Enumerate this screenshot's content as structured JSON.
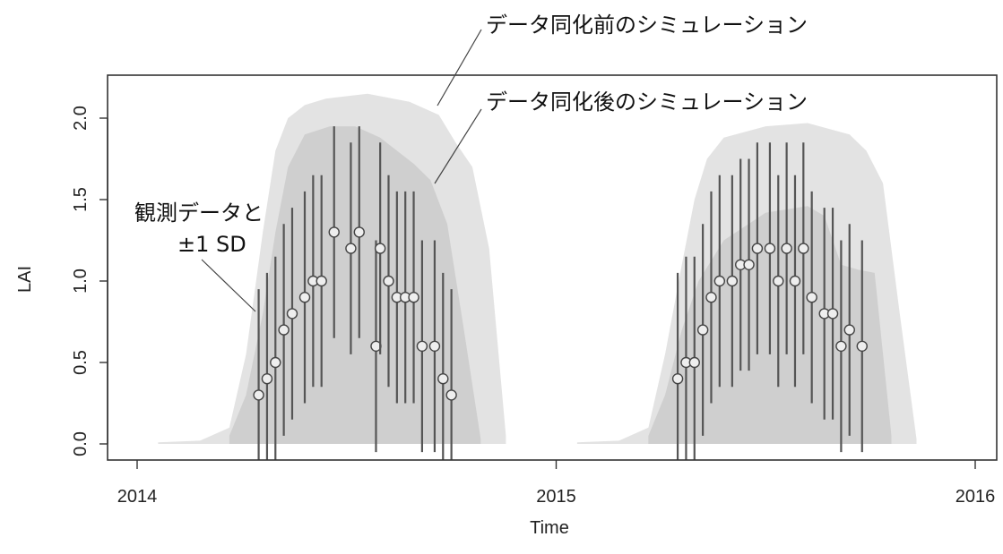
{
  "chart_data": {
    "type": "area",
    "xlabel": "Time",
    "ylabel": "LAI",
    "xlim": [
      2014.0,
      2016.0
    ],
    "ylim": [
      0.0,
      2.0
    ],
    "x_ticks": [
      {
        "value": 2014.0,
        "label": "2014"
      },
      {
        "value": 2015.0,
        "label": "2015"
      },
      {
        "value": 2016.0,
        "label": "2016"
      }
    ],
    "y_ticks": [
      {
        "value": 0.0,
        "label": "0.0"
      },
      {
        "value": 0.5,
        "label": "0.5"
      },
      {
        "value": 1.0,
        "label": "1.0"
      },
      {
        "value": 1.5,
        "label": "1.5"
      },
      {
        "value": 2.0,
        "label": "2.0"
      }
    ],
    "grid": false,
    "colors": {
      "band_before": "#e3e3e3",
      "band_after": "#cfcfcf",
      "observation": "#555555",
      "text": "#222222"
    },
    "series": [
      {
        "name": "データ同化前のシミュレーション",
        "kind": "band",
        "x": [
          2014.05,
          2014.15,
          2014.22,
          2014.26,
          2014.3,
          2014.33,
          2014.36,
          2014.4,
          2014.45,
          2014.55,
          2014.65,
          2014.72,
          2014.76,
          2014.8,
          2014.84,
          2014.88
        ],
        "upper": [
          0.01,
          0.02,
          0.1,
          0.55,
          1.3,
          1.8,
          2.0,
          2.08,
          2.12,
          2.15,
          2.1,
          2.02,
          1.85,
          1.7,
          1.2,
          0.05
        ],
        "lower": [
          0.0,
          0.0,
          0.0,
          0.0,
          0.0,
          0.0,
          0.0,
          0.0,
          0.0,
          0.0,
          0.0,
          0.0,
          0.0,
          0.0,
          0.0,
          0.0
        ]
      },
      {
        "name": "データ同化前のシミュレーション",
        "kind": "band",
        "x": [
          2015.05,
          2015.15,
          2015.22,
          2015.26,
          2015.3,
          2015.33,
          2015.36,
          2015.4,
          2015.5,
          2015.6,
          2015.7,
          2015.74,
          2015.78,
          2015.82,
          2015.86
        ],
        "upper": [
          0.01,
          0.02,
          0.1,
          0.55,
          1.1,
          1.5,
          1.75,
          1.88,
          1.95,
          1.97,
          1.9,
          1.8,
          1.6,
          0.8,
          0.03
        ],
        "lower": [
          0.0,
          0.0,
          0.0,
          0.0,
          0.0,
          0.0,
          0.0,
          0.0,
          0.0,
          0.0,
          0.0,
          0.0,
          0.0,
          0.0,
          0.0
        ]
      },
      {
        "name": "データ同化後のシミュレーション",
        "kind": "band",
        "x": [
          2014.22,
          2014.26,
          2014.3,
          2014.33,
          2014.36,
          2014.4,
          2014.46,
          2014.52,
          2014.58,
          2014.62,
          2014.66,
          2014.7,
          2014.74,
          2014.78,
          2014.82
        ],
        "upper": [
          0.05,
          0.3,
          0.8,
          1.3,
          1.7,
          1.9,
          1.95,
          1.95,
          1.88,
          1.8,
          1.72,
          1.62,
          1.35,
          0.7,
          0.03
        ],
        "lower": [
          0.0,
          0.0,
          0.0,
          0.0,
          0.0,
          0.0,
          0.0,
          0.0,
          0.0,
          0.0,
          0.0,
          0.0,
          0.0,
          0.0,
          0.0
        ]
      },
      {
        "name": "データ同化後のシミュレーション",
        "kind": "band",
        "x": [
          2015.22,
          2015.26,
          2015.3,
          2015.34,
          2015.4,
          2015.5,
          2015.6,
          2015.64,
          2015.68,
          2015.72,
          2015.76,
          2015.8
        ],
        "upper": [
          0.05,
          0.3,
          0.7,
          1.0,
          1.25,
          1.42,
          1.46,
          1.4,
          1.1,
          1.07,
          1.05,
          0.05
        ],
        "lower": [
          0.0,
          0.0,
          0.0,
          0.0,
          0.0,
          0.0,
          0.0,
          0.0,
          0.0,
          0.0,
          0.0,
          0.0
        ]
      },
      {
        "name": "観測データと±1 SD",
        "kind": "observations",
        "x": [
          2014.29,
          2014.31,
          2014.33,
          2014.35,
          2014.37,
          2014.4,
          2014.42,
          2014.44,
          2014.47,
          2014.51,
          2014.53,
          2014.57,
          2014.58,
          2014.6,
          2014.62,
          2014.64,
          2014.66,
          2014.68,
          2014.71,
          2014.73,
          2014.75,
          2015.29,
          2015.31,
          2015.33,
          2015.35,
          2015.37,
          2015.39,
          2015.42,
          2015.44,
          2015.46,
          2015.48,
          2015.51,
          2015.53,
          2015.55,
          2015.57,
          2015.59,
          2015.61,
          2015.64,
          2015.66,
          2015.68,
          2015.7,
          2015.73
        ],
        "y": [
          0.3,
          0.4,
          0.5,
          0.7,
          0.8,
          0.9,
          1.0,
          1.0,
          1.3,
          1.2,
          1.3,
          0.6,
          1.2,
          1.0,
          0.9,
          0.9,
          0.9,
          0.6,
          0.6,
          0.4,
          0.3,
          0.4,
          0.5,
          0.5,
          0.7,
          0.9,
          1.0,
          1.0,
          1.1,
          1.1,
          1.2,
          1.2,
          1.0,
          1.2,
          1.0,
          1.2,
          0.9,
          0.8,
          0.8,
          0.6,
          0.7,
          0.6
        ],
        "sd": 0.65
      }
    ],
    "annotations": [
      {
        "text": "データ同化前のシミュレーション"
      },
      {
        "text": "データ同化後のシミュレーション"
      },
      {
        "text": "観測データと"
      },
      {
        "text": "±1 SD"
      }
    ]
  }
}
